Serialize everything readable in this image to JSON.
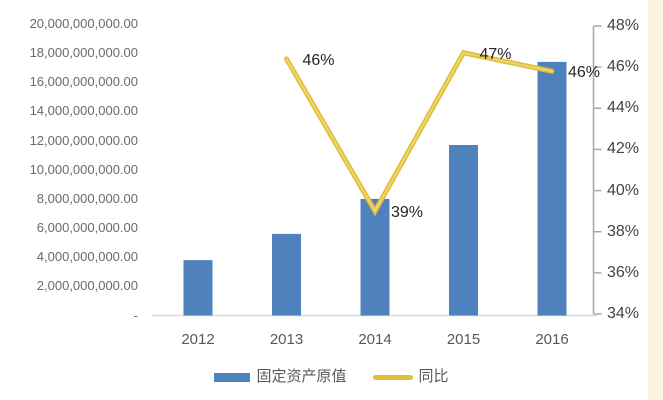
{
  "page": {
    "background": "#ffffff",
    "right_strip_color": "#faf4e1"
  },
  "chart_data": {
    "type": "combo",
    "title": "",
    "grid": false,
    "legend_position": "bottom",
    "categories": [
      "2012",
      "2013",
      "2014",
      "2015",
      "2016"
    ],
    "series": [
      {
        "name": "固定资产原值",
        "type": "bar",
        "color": "#4f81bd",
        "axis": "left",
        "values": [
          3800000000,
          5600000000,
          8000000000,
          11700000000,
          17400000000
        ]
      },
      {
        "name": "同比",
        "type": "line",
        "color": "#e1be3c",
        "highlight_color": "#f1d977",
        "axis": "right",
        "categories": [
          "2013",
          "2014",
          "2015",
          "2016"
        ],
        "values": [
          46,
          39,
          47,
          46
        ],
        "values_precise": [
          46.4,
          39.0,
          46.7,
          45.8
        ],
        "point_labels": [
          "46%",
          "39%",
          "47%",
          "46%"
        ]
      }
    ],
    "left_axis": {
      "min": 0,
      "max": 20000000000,
      "step": 2000000000,
      "tick_labels_top_down": [
        "20,000,000,000.00",
        "18,000,000,000.00",
        "16,000,000,000.00",
        "14,000,000,000.00",
        "12,000,000,000.00",
        "10,000,000,000.00",
        "8,000,000,000.00",
        "6,000,000,000.00",
        "4,000,000,000.00",
        "2,000,000,000.00",
        "-"
      ]
    },
    "right_axis": {
      "min": 34,
      "max": 48,
      "step": 2,
      "tick_labels_top_down": [
        "48%",
        "46%",
        "44%",
        "42%",
        "40%",
        "38%",
        "36%",
        "34%"
      ]
    },
    "legend": [
      {
        "label": "固定资产原值",
        "swatch": "bar",
        "color": "#4f81bd"
      },
      {
        "label": "同比",
        "swatch": "line",
        "color": "#e1be3c"
      }
    ],
    "axis_colors": {
      "baseline": "#d8d8d8",
      "right_axis_line": "#a8a8a8",
      "left_label_text": "#6a6a6a",
      "right_label_text": "#444444",
      "x_label_text": "#595959",
      "data_label_text": "#262626"
    }
  }
}
